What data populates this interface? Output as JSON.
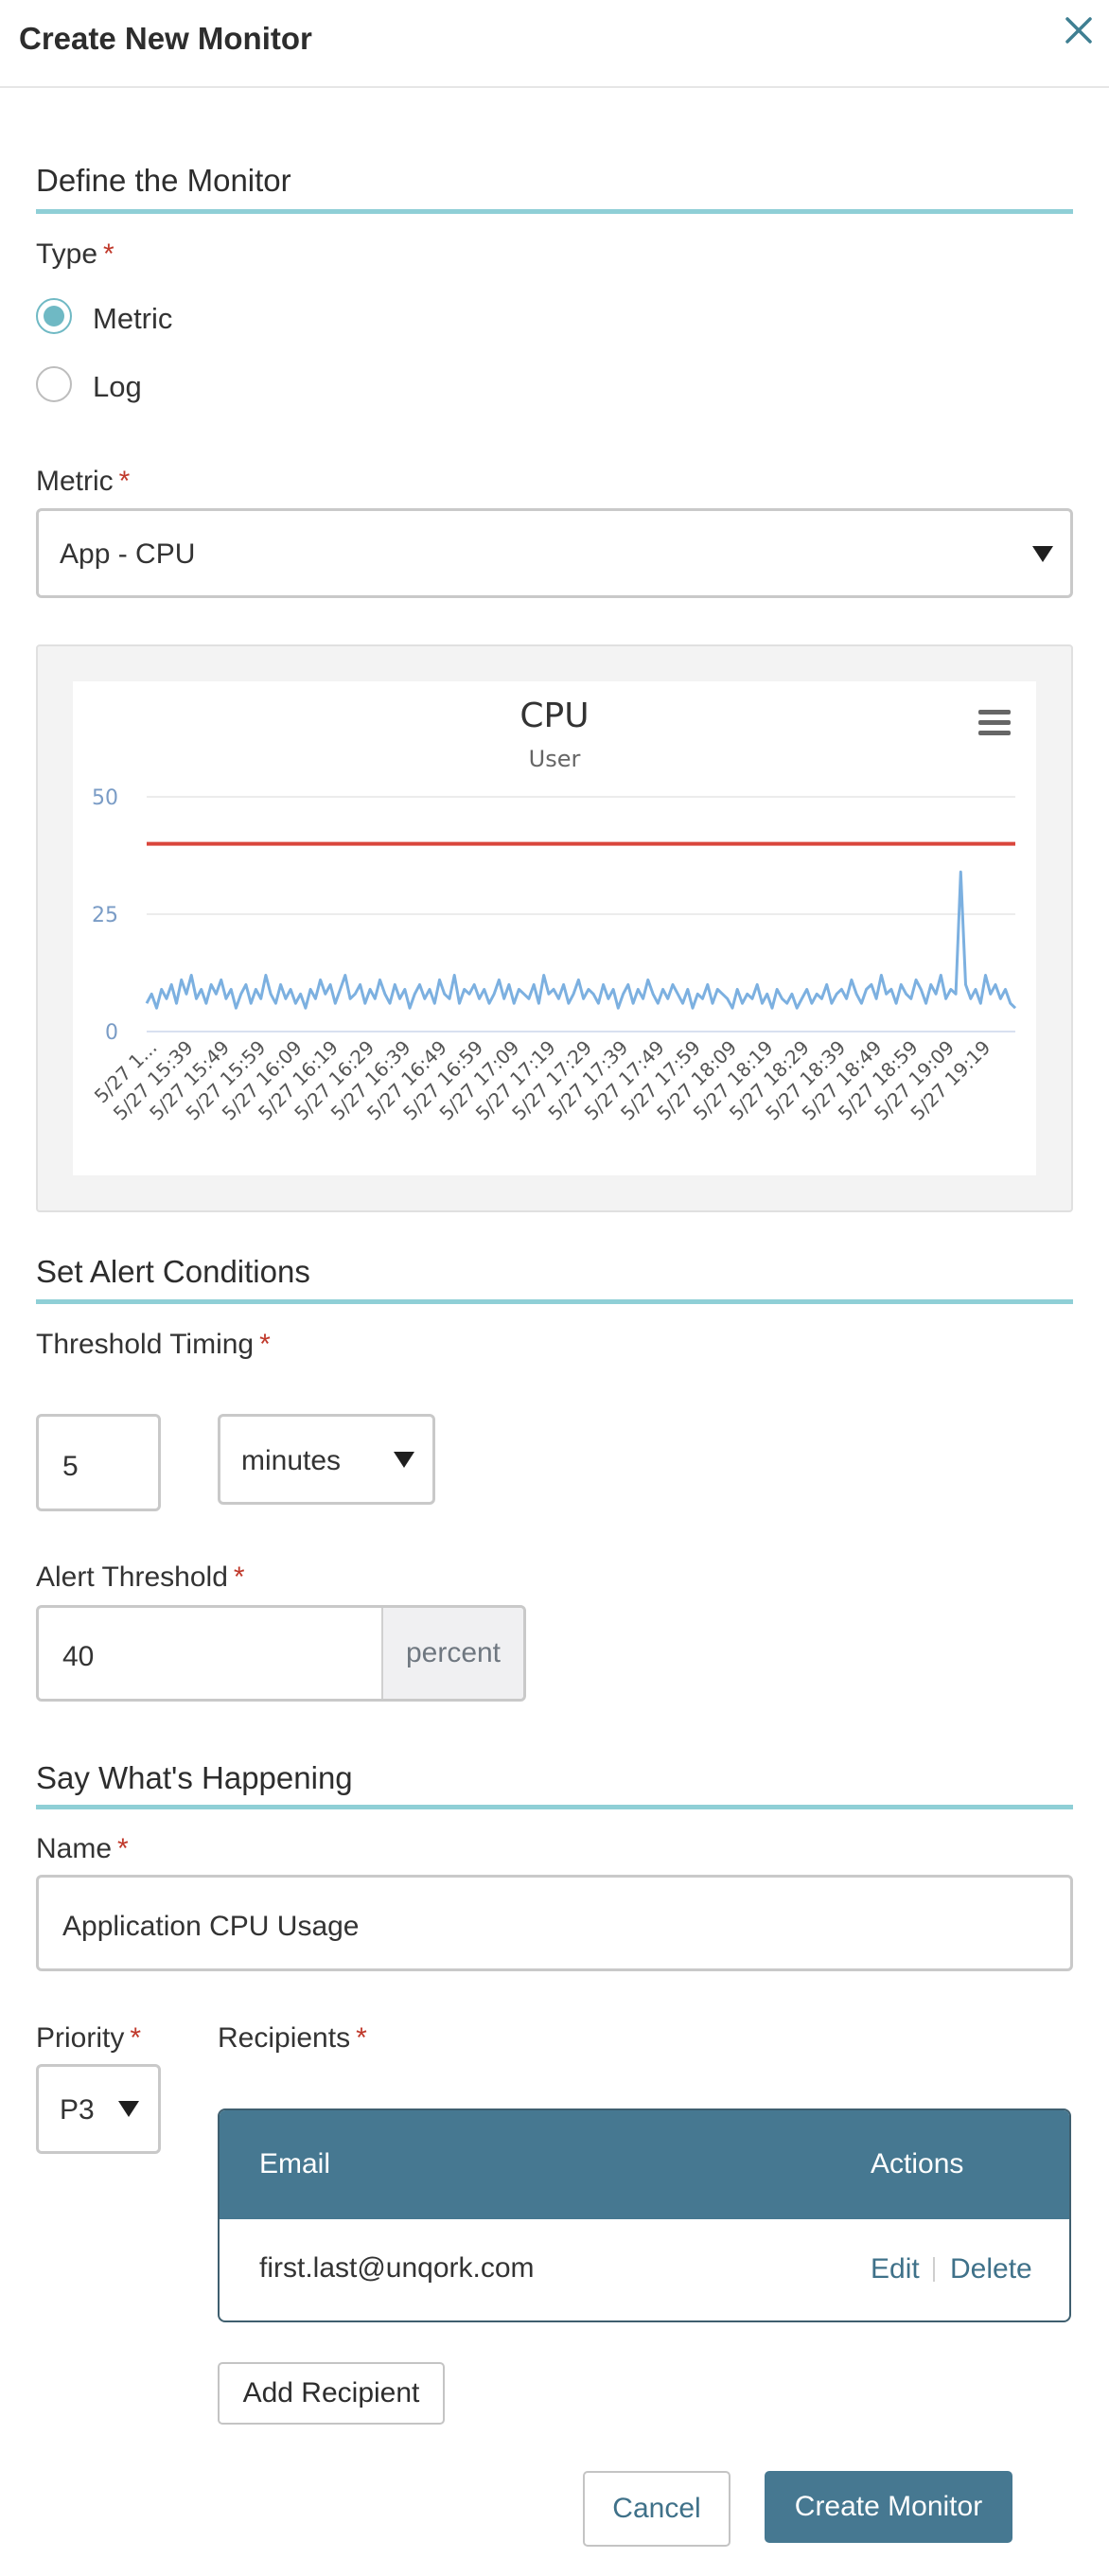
{
  "header": {
    "title": "Create New Monitor",
    "close_icon": "close-icon"
  },
  "define": {
    "section_title": "Define the Monitor",
    "type_label": "Type",
    "required_mark": "*",
    "type_options": [
      {
        "label": "Metric",
        "checked": true
      },
      {
        "label": "Log",
        "checked": false
      }
    ],
    "metric_label": "Metric",
    "metric_value": "App - CPU"
  },
  "chart_data": {
    "type": "line",
    "title": "CPU",
    "subtitle": "User",
    "menu_icon": "hamburger-menu-icon",
    "y_ticks": [
      0,
      25,
      50
    ],
    "ylim": [
      0,
      50
    ],
    "threshold": 40,
    "threshold_color": "#d9453b",
    "series_color": "#7cb0e0",
    "x_labels": [
      "5/27 1...",
      "5/27 15:39",
      "5/27 15:49",
      "5/27 15:59",
      "5/27 16:09",
      "5/27 16:19",
      "5/27 16:29",
      "5/27 16:39",
      "5/27 16:49",
      "5/27 16:59",
      "5/27 17:09",
      "5/27 17:19",
      "5/27 17:29",
      "5/27 17:39",
      "5/27 17:49",
      "5/27 17:59",
      "5/27 18:09",
      "5/27 18:19",
      "5/27 18:29",
      "5/27 18:39",
      "5/27 18:49",
      "5/27 18:59",
      "5/27 19:09",
      "5/27 19:19"
    ],
    "values": [
      6,
      8,
      5,
      9,
      7,
      10,
      6,
      11,
      8,
      12,
      7,
      9,
      6,
      10,
      8,
      11,
      7,
      9,
      5,
      8,
      10,
      6,
      9,
      7,
      12,
      8,
      6,
      10,
      7,
      9,
      6,
      8,
      5,
      9,
      7,
      11,
      8,
      10,
      6,
      9,
      12,
      7,
      8,
      10,
      6,
      9,
      7,
      11,
      8,
      6,
      10,
      7,
      9,
      5,
      8,
      10,
      7,
      9,
      6,
      11,
      8,
      7,
      12,
      6,
      9,
      8,
      10,
      7,
      9,
      6,
      8,
      11,
      7,
      10,
      6,
      9,
      8,
      7,
      10,
      6,
      12,
      8,
      9,
      7,
      10,
      6,
      8,
      11,
      7,
      9,
      8,
      6,
      10,
      7,
      9,
      5,
      8,
      10,
      6,
      9,
      7,
      11,
      8,
      6,
      9,
      7,
      10,
      8,
      6,
      9,
      5,
      8,
      7,
      10,
      6,
      9,
      8,
      7,
      5,
      9,
      6,
      8,
      7,
      10,
      6,
      8,
      5,
      9,
      7,
      6,
      8,
      5,
      7,
      9,
      6,
      8,
      7,
      10,
      6,
      8,
      9,
      7,
      11,
      8,
      6,
      9,
      10,
      7,
      12,
      8,
      9,
      6,
      10,
      8,
      7,
      11,
      9,
      6,
      10,
      8,
      12,
      7,
      9,
      8,
      34,
      10,
      7,
      9,
      6,
      12,
      8,
      10,
      7,
      9,
      6,
      5
    ]
  },
  "alert": {
    "section_title": "Set Alert Conditions",
    "timing_label": "Threshold Timing",
    "timing_value": "5",
    "timing_unit": "minutes",
    "threshold_label": "Alert Threshold",
    "threshold_value": "40",
    "threshold_unit": "percent"
  },
  "happening": {
    "section_title": "Say What's Happening",
    "name_label": "Name",
    "name_value": "Application CPU Usage",
    "priority_label": "Priority",
    "priority_value": "P3",
    "recipients_label": "Recipients",
    "table": {
      "col_email": "Email",
      "col_actions": "Actions",
      "rows": [
        {
          "email": "first.last@unqork.com",
          "edit": "Edit",
          "delete": "Delete"
        }
      ]
    },
    "add_recipient": "Add Recipient"
  },
  "footer": {
    "cancel": "Cancel",
    "create": "Create Monitor"
  }
}
